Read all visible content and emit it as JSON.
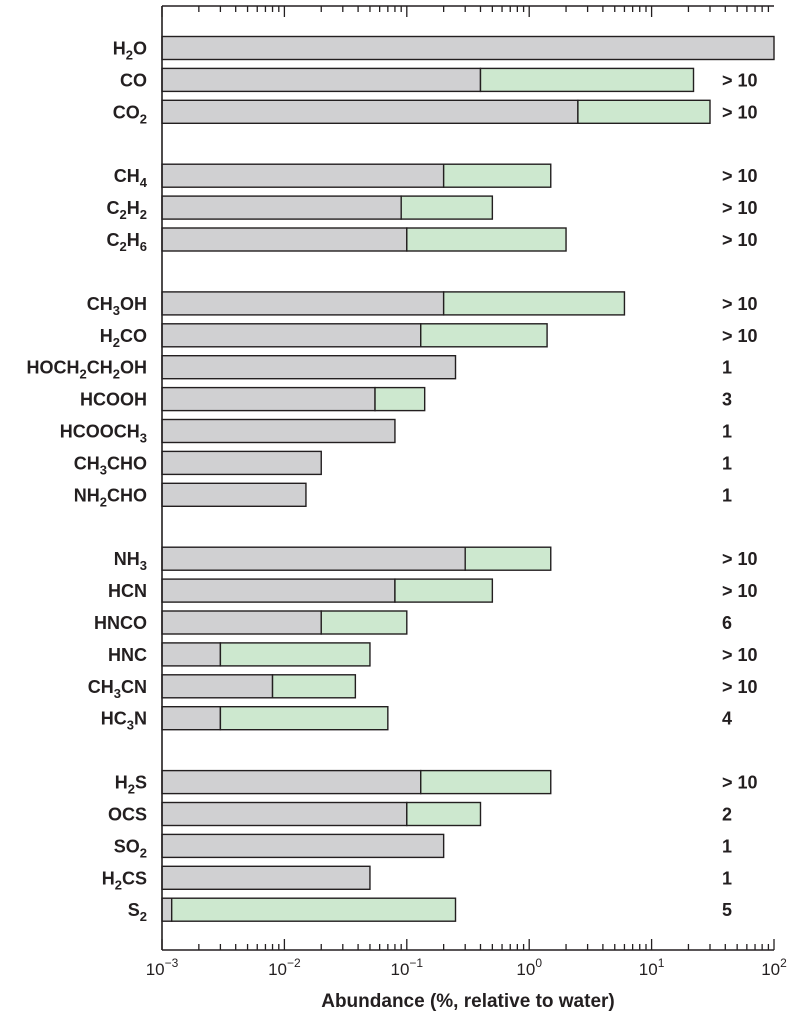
{
  "chart_data": {
    "type": "bar",
    "xlabel": "Abundance (%, relative to water)",
    "xscale": "log",
    "xlim": [
      0.001,
      100
    ],
    "xticks": [
      {
        "base": "10",
        "exp": "−3",
        "value": 0.001
      },
      {
        "base": "10",
        "exp": "−2",
        "value": 0.01
      },
      {
        "base": "10",
        "exp": "−1",
        "value": 0.1
      },
      {
        "base": "10",
        "exp": "0",
        "value": 1
      },
      {
        "base": "10",
        "exp": "1",
        "value": 10
      },
      {
        "base": "10",
        "exp": "2",
        "value": 100
      }
    ],
    "colors": {
      "min_bar": "#d0d0d2",
      "range_bar": "#cde8cf",
      "outline": "#231f20"
    },
    "groups": [
      {
        "molecules": [
          {
            "label": [
              [
                "H",
                ""
              ],
              [
                "2",
                "sub"
              ],
              [
                "O",
                ""
              ]
            ],
            "min": 100,
            "max": null,
            "count": ""
          },
          {
            "label": [
              [
                "CO",
                ""
              ]
            ],
            "min": 0.4,
            "max": 22,
            "count": "> 10"
          },
          {
            "label": [
              [
                "CO",
                ""
              ],
              [
                "2",
                "sub"
              ]
            ],
            "min": 2.5,
            "max": 30,
            "count": "> 10"
          }
        ]
      },
      {
        "molecules": [
          {
            "label": [
              [
                "CH",
                ""
              ],
              [
                "4",
                "sub"
              ]
            ],
            "min": 0.2,
            "max": 1.5,
            "count": "> 10"
          },
          {
            "label": [
              [
                "C",
                ""
              ],
              [
                "2",
                "sub"
              ],
              [
                "H",
                ""
              ],
              [
                "2",
                "sub"
              ]
            ],
            "min": 0.09,
            "max": 0.5,
            "count": "> 10"
          },
          {
            "label": [
              [
                "C",
                ""
              ],
              [
                "2",
                "sub"
              ],
              [
                "H",
                ""
              ],
              [
                "6",
                "sub"
              ]
            ],
            "min": 0.1,
            "max": 2.0,
            "count": "> 10"
          }
        ]
      },
      {
        "molecules": [
          {
            "label": [
              [
                "CH",
                ""
              ],
              [
                "3",
                "sub"
              ],
              [
                "OH",
                ""
              ]
            ],
            "min": 0.2,
            "max": 6.0,
            "count": "> 10"
          },
          {
            "label": [
              [
                "H",
                ""
              ],
              [
                "2",
                "sub"
              ],
              [
                "CO",
                ""
              ]
            ],
            "min": 0.13,
            "max": 1.4,
            "count": "> 10"
          },
          {
            "label": [
              [
                "HOCH",
                ""
              ],
              [
                "2",
                "sub"
              ],
              [
                "CH",
                ""
              ],
              [
                "2",
                "sub"
              ],
              [
                "OH",
                ""
              ]
            ],
            "min": 0.25,
            "max": null,
            "count": "1"
          },
          {
            "label": [
              [
                "HCOOH",
                ""
              ]
            ],
            "min": 0.055,
            "max": 0.14,
            "count": "3"
          },
          {
            "label": [
              [
                "HCOOCH",
                ""
              ],
              [
                "3",
                "sub"
              ]
            ],
            "min": 0.08,
            "max": null,
            "count": "1"
          },
          {
            "label": [
              [
                "CH",
                ""
              ],
              [
                "3",
                "sub"
              ],
              [
                "CHO",
                ""
              ]
            ],
            "min": 0.02,
            "max": null,
            "count": "1"
          },
          {
            "label": [
              [
                "NH",
                ""
              ],
              [
                "2",
                "sub"
              ],
              [
                "CHO",
                ""
              ]
            ],
            "min": 0.015,
            "max": null,
            "count": "1"
          }
        ]
      },
      {
        "molecules": [
          {
            "label": [
              [
                "NH",
                ""
              ],
              [
                "3",
                "sub"
              ]
            ],
            "min": 0.3,
            "max": 1.5,
            "count": "> 10"
          },
          {
            "label": [
              [
                "HCN",
                ""
              ]
            ],
            "min": 0.08,
            "max": 0.5,
            "count": "> 10"
          },
          {
            "label": [
              [
                "HNCO",
                ""
              ]
            ],
            "min": 0.02,
            "max": 0.1,
            "count": "6"
          },
          {
            "label": [
              [
                "HNC",
                ""
              ]
            ],
            "min": 0.003,
            "max": 0.05,
            "count": "> 10"
          },
          {
            "label": [
              [
                "CH",
                ""
              ],
              [
                "3",
                "sub"
              ],
              [
                "CN",
                ""
              ]
            ],
            "min": 0.008,
            "max": 0.038,
            "count": "> 10"
          },
          {
            "label": [
              [
                "HC",
                ""
              ],
              [
                "3",
                "sub"
              ],
              [
                "N",
                ""
              ]
            ],
            "min": 0.003,
            "max": 0.07,
            "count": "4"
          }
        ]
      },
      {
        "molecules": [
          {
            "label": [
              [
                "H",
                ""
              ],
              [
                "2",
                "sub"
              ],
              [
                "S",
                ""
              ]
            ],
            "min": 0.13,
            "max": 1.5,
            "count": "> 10"
          },
          {
            "label": [
              [
                "OCS",
                ""
              ]
            ],
            "min": 0.1,
            "max": 0.4,
            "count": "2"
          },
          {
            "label": [
              [
                "SO",
                ""
              ],
              [
                "2",
                "sub"
              ]
            ],
            "min": 0.2,
            "max": null,
            "count": "1"
          },
          {
            "label": [
              [
                "H",
                ""
              ],
              [
                "2",
                "sub"
              ],
              [
                "CS",
                ""
              ]
            ],
            "min": 0.05,
            "max": null,
            "count": "1"
          },
          {
            "label": [
              [
                "S",
                ""
              ],
              [
                "2",
                "sub"
              ]
            ],
            "min": 0.0012,
            "max": 0.25,
            "count": "5"
          }
        ]
      }
    ]
  }
}
